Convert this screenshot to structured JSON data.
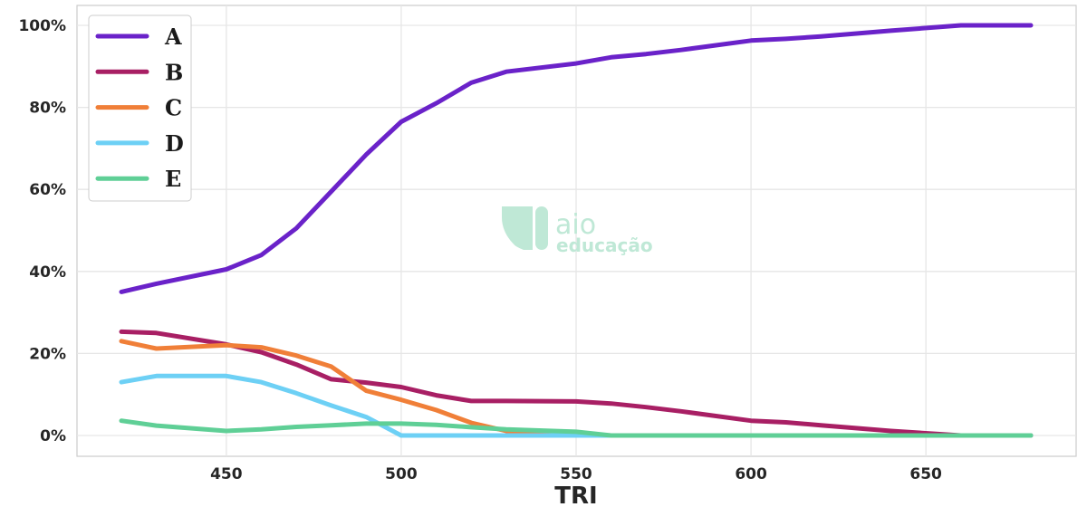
{
  "chart_data": {
    "type": "line",
    "xlabel": "TRI",
    "ylabel": "",
    "xlim": [
      404,
      1176
    ],
    "ylim": [
      -5,
      105
    ],
    "x_ticks": [
      450,
      500,
      550,
      600,
      650
    ],
    "y_ticks": [
      0,
      20,
      40,
      60,
      80,
      100
    ],
    "y_tick_format": "percent",
    "grid": true,
    "legend_position": "top-left",
    "x": [
      420,
      430,
      450,
      460,
      470,
      480,
      490,
      500,
      510,
      520,
      530,
      550,
      560,
      570,
      580,
      600,
      610,
      620,
      640,
      660,
      680
    ],
    "series": [
      {
        "name": "A",
        "color": "#6a22c9",
        "values": [
          35,
          37,
          40.5,
          44,
          50.5,
          59.5,
          68.5,
          76.5,
          81,
          86,
          88.7,
          90.7,
          92.2,
          93,
          94,
          96.3,
          96.7,
          97.3,
          98.7,
          100,
          100
        ]
      },
      {
        "name": "B",
        "color": "#a81f64",
        "values": [
          25.3,
          25,
          22.2,
          20.3,
          17.3,
          13.7,
          12.9,
          11.8,
          9.8,
          8.4,
          8.4,
          8.3,
          7.8,
          6.9,
          5.9,
          3.6,
          3.2,
          2.5,
          1.1,
          0,
          0
        ]
      },
      {
        "name": "C",
        "color": "#f07f38",
        "values": [
          23,
          21.2,
          22,
          21.5,
          19.5,
          16.8,
          10.9,
          8.7,
          6.2,
          3.1,
          1.1,
          0.2,
          0,
          0,
          0,
          0,
          0,
          0,
          0,
          0,
          0
        ]
      },
      {
        "name": "D",
        "color": "#6dd0f5",
        "values": [
          13,
          14.5,
          14.5,
          13,
          10.3,
          7.3,
          4.5,
          0,
          0,
          0,
          0,
          0,
          0,
          0,
          0,
          0,
          0,
          0,
          0,
          0,
          0
        ]
      },
      {
        "name": "E",
        "color": "#5fcf96",
        "values": [
          3.6,
          2.4,
          1.1,
          1.5,
          2.1,
          2.5,
          2.9,
          2.9,
          2.6,
          2,
          1.5,
          0.9,
          0,
          0,
          0,
          0,
          0,
          0,
          0,
          0,
          0
        ]
      }
    ]
  },
  "watermark": {
    "line1": "aio",
    "line2": "educação",
    "color": "#bfe8d6"
  }
}
